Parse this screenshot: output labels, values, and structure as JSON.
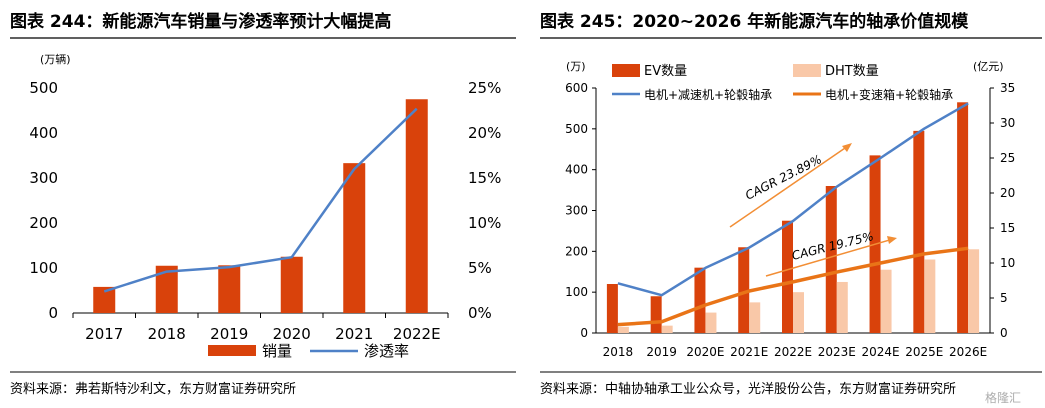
{
  "left": {
    "heading": "图表 244：新能源汽车销量与渗透率预计大幅提高",
    "source": "资料来源：弗若斯特沙利文，东方财富证券研究所",
    "chart_data": {
      "type": "bar",
      "categories": [
        "2017",
        "2018",
        "2019",
        "2020",
        "2021",
        "2022E"
      ],
      "ylabel_left": "(万辆)",
      "ylim_left": [
        0,
        500
      ],
      "yticks_left": [
        0,
        100,
        200,
        300,
        400,
        500
      ],
      "ylim_right": [
        0,
        25
      ],
      "yticks_right": [
        "0%",
        "5%",
        "10%",
        "15%",
        "20%",
        "25%"
      ],
      "series": [
        {
          "name": "销量",
          "type": "bar",
          "axis": "left",
          "color": "#D9420B",
          "values": [
            58,
            105,
            106,
            125,
            333,
            475
          ]
        },
        {
          "name": "渗透率",
          "type": "line",
          "axis": "right",
          "color": "#4F81C7",
          "values": [
            2.4,
            4.6,
            5.1,
            6.2,
            16.0,
            22.7
          ]
        }
      ],
      "legend_position": "bottom"
    }
  },
  "right": {
    "heading": "图表 245：2020~2026 年新能源汽车的轴承价值规模",
    "source": "资料来源：中轴协轴承工业公众号，光洋股份公告，东方财富证券研究所",
    "watermark": "格隆汇",
    "chart_data": {
      "type": "bar",
      "categories": [
        "2018",
        "2019",
        "2020E",
        "2021E",
        "2022E",
        "2023E",
        "2024E",
        "2025E",
        "2026E"
      ],
      "ylabel_left": "(万)",
      "ylabel_right": "(亿元)",
      "ylim_left": [
        0,
        600
      ],
      "yticks_left": [
        0,
        100,
        200,
        300,
        400,
        500,
        600
      ],
      "ylim_right": [
        0,
        35
      ],
      "yticks_right": [
        0,
        5,
        10,
        15,
        20,
        25,
        30,
        35
      ],
      "series": [
        {
          "name": "EV数量",
          "type": "bar",
          "axis": "left",
          "color": "#D9420B",
          "values": [
            120,
            90,
            160,
            210,
            275,
            360,
            435,
            495,
            565
          ]
        },
        {
          "name": "DHT数量",
          "type": "bar",
          "axis": "left",
          "color": "#F9C8A8",
          "values": [
            15,
            18,
            50,
            75,
            100,
            125,
            155,
            180,
            205
          ]
        },
        {
          "name": "电机+减速机+轮毂轴承",
          "type": "line",
          "axis": "right",
          "color": "#4F81C7",
          "values": [
            7.1,
            5.4,
            9.3,
            12.2,
            16.0,
            20.9,
            25.0,
            29.2,
            32.8
          ]
        },
        {
          "name": "电机+变速箱+轮毂轴承",
          "type": "line",
          "axis": "right",
          "color": "#E97417",
          "values": [
            1.2,
            1.6,
            4.0,
            6.0,
            7.3,
            8.7,
            10.0,
            11.3,
            12.1
          ]
        }
      ],
      "annotations": [
        "CAGR 23.89%",
        "CAGR 19.75%"
      ],
      "legend_position": "top"
    }
  }
}
